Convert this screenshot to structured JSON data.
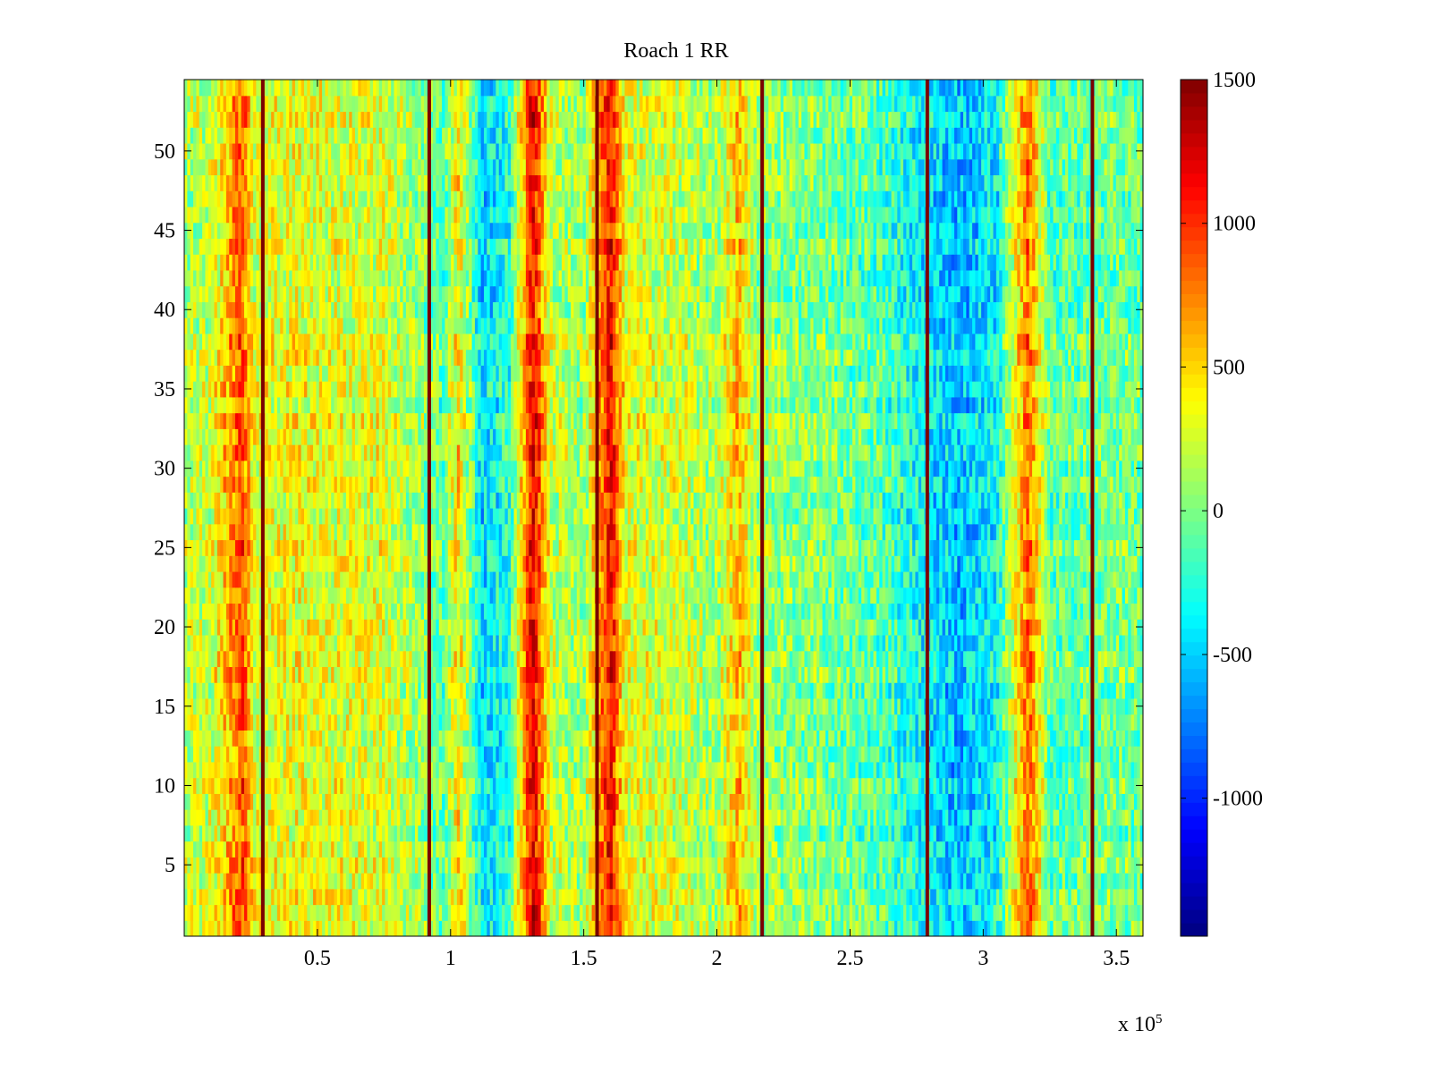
{
  "chart_data": {
    "type": "heatmap",
    "title": "Roach 1 RR",
    "xlabel": "",
    "ylabel": "",
    "x_multiplier_label": {
      "base": "x 10",
      "exponent": "5"
    },
    "xlim": [
      0,
      360000
    ],
    "ylim": [
      0.5,
      54.5
    ],
    "rows": 54,
    "xticks": [
      {
        "value": 50000,
        "label": "0.5"
      },
      {
        "value": 100000,
        "label": "1"
      },
      {
        "value": 150000,
        "label": "1.5"
      },
      {
        "value": 200000,
        "label": "2"
      },
      {
        "value": 250000,
        "label": "2.5"
      },
      {
        "value": 300000,
        "label": "3"
      },
      {
        "value": 350000,
        "label": "3.5"
      }
    ],
    "yticks": [
      {
        "value": 5,
        "label": "5"
      },
      {
        "value": 10,
        "label": "10"
      },
      {
        "value": 15,
        "label": "15"
      },
      {
        "value": 20,
        "label": "20"
      },
      {
        "value": 25,
        "label": "25"
      },
      {
        "value": 30,
        "label": "30"
      },
      {
        "value": 35,
        "label": "35"
      },
      {
        "value": 40,
        "label": "40"
      },
      {
        "value": 45,
        "label": "45"
      },
      {
        "value": 50,
        "label": "50"
      }
    ],
    "colorbar": {
      "colormap": "jet",
      "clim": [
        -1480,
        1500
      ],
      "ticks": [
        {
          "value": 1500,
          "label": "1500"
        },
        {
          "value": 1000,
          "label": "1000"
        },
        {
          "value": 500,
          "label": "500"
        },
        {
          "value": 0,
          "label": "0"
        },
        {
          "value": -500,
          "label": "-500"
        },
        {
          "value": -1000,
          "label": "-1000"
        }
      ]
    },
    "peak_lines": [
      {
        "x": 29500,
        "value": 1500
      },
      {
        "x": 92000,
        "value": 1500
      },
      {
        "x": 155000,
        "value": 1500
      },
      {
        "x": 217000,
        "value": 1500
      },
      {
        "x": 279000,
        "value": 1500
      },
      {
        "x": 341000,
        "value": 1500
      }
    ],
    "band_profile": [
      {
        "x": 0,
        "value": 150
      },
      {
        "x": 10000,
        "value": 250
      },
      {
        "x": 22000,
        "value": 900
      },
      {
        "x": 26000,
        "value": 300
      },
      {
        "x": 40000,
        "value": 350
      },
      {
        "x": 60000,
        "value": 300
      },
      {
        "x": 75000,
        "value": 300
      },
      {
        "x": 88000,
        "value": 100
      },
      {
        "x": 97000,
        "value": -100
      },
      {
        "x": 103000,
        "value": 450
      },
      {
        "x": 112000,
        "value": -450
      },
      {
        "x": 122000,
        "value": -250
      },
      {
        "x": 131000,
        "value": 1200
      },
      {
        "x": 138000,
        "value": 200
      },
      {
        "x": 150000,
        "value": 100
      },
      {
        "x": 160000,
        "value": 1150
      },
      {
        "x": 166000,
        "value": 300
      },
      {
        "x": 185000,
        "value": 250
      },
      {
        "x": 200000,
        "value": 100
      },
      {
        "x": 208000,
        "value": 600
      },
      {
        "x": 215000,
        "value": 100
      },
      {
        "x": 240000,
        "value": 0
      },
      {
        "x": 260000,
        "value": -100
      },
      {
        "x": 290000,
        "value": -550
      },
      {
        "x": 305000,
        "value": -350
      },
      {
        "x": 317000,
        "value": 850
      },
      {
        "x": 325000,
        "value": -100
      },
      {
        "x": 350000,
        "value": 0
      },
      {
        "x": 360000,
        "value": -50
      }
    ]
  },
  "colors": {
    "axes": "#000000",
    "background": "#ffffff"
  }
}
